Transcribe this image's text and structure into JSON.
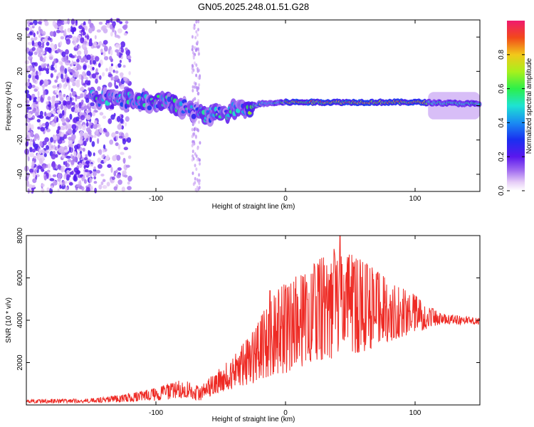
{
  "title": "GN05.2025.248.01.51.G28",
  "chart_data": [
    {
      "type": "heatmap",
      "name": "spectrogram",
      "xlabel": "Height of straight line (km)",
      "ylabel": "Frequency (Hz)",
      "xlim": [
        -200,
        150
      ],
      "ylim": [
        -50,
        50
      ],
      "xticks": [
        -100,
        0,
        100
      ],
      "yticks": [
        -40,
        -20,
        0,
        20,
        40
      ],
      "colorbar": {
        "label": "Normalized spectral amplitude",
        "range": [
          0,
          1
        ],
        "ticks": [
          "0.0",
          "0.2",
          "0.4",
          "0.6",
          "0.8"
        ]
      },
      "ridge": [
        {
          "x": -150,
          "y": 5
        },
        {
          "x": -130,
          "y": 4
        },
        {
          "x": -110,
          "y": 3
        },
        {
          "x": -90,
          "y": 1
        },
        {
          "x": -75,
          "y": -2
        },
        {
          "x": -60,
          "y": -6
        },
        {
          "x": -50,
          "y": -4
        },
        {
          "x": -40,
          "y": -3
        },
        {
          "x": -30,
          "y": -1
        },
        {
          "x": -20,
          "y": 1
        },
        {
          "x": 0,
          "y": 2
        },
        {
          "x": 50,
          "y": 2
        },
        {
          "x": 100,
          "y": 2
        },
        {
          "x": 150,
          "y": 1
        }
      ]
    },
    {
      "type": "line",
      "name": "snr",
      "xlabel": "Height of straight line (km)",
      "ylabel": "SNR (10 * v/v)",
      "xlim": [
        -200,
        150
      ],
      "ylim": [
        0,
        8000
      ],
      "xticks": [
        -100,
        0,
        100
      ],
      "yticks": [
        2000,
        4000,
        6000,
        8000
      ],
      "envelope": [
        {
          "x": -200,
          "min": 80,
          "max": 250
        },
        {
          "x": -150,
          "min": 100,
          "max": 300
        },
        {
          "x": -120,
          "min": 150,
          "max": 550
        },
        {
          "x": -100,
          "min": 200,
          "max": 800
        },
        {
          "x": -80,
          "min": 300,
          "max": 1200
        },
        {
          "x": -65,
          "min": 200,
          "max": 900
        },
        {
          "x": -55,
          "min": 500,
          "max": 1500
        },
        {
          "x": -40,
          "min": 800,
          "max": 2300
        },
        {
          "x": -25,
          "min": 1000,
          "max": 3500
        },
        {
          "x": -10,
          "min": 1400,
          "max": 5200
        },
        {
          "x": 0,
          "min": 1500,
          "max": 5800
        },
        {
          "x": 20,
          "min": 2000,
          "max": 6600
        },
        {
          "x": 40,
          "min": 2200,
          "max": 7500
        },
        {
          "x": 60,
          "min": 2500,
          "max": 6800
        },
        {
          "x": 80,
          "min": 3000,
          "max": 5900
        },
        {
          "x": 100,
          "min": 3400,
          "max": 5200
        },
        {
          "x": 120,
          "min": 3800,
          "max": 4300
        },
        {
          "x": 150,
          "min": 3800,
          "max": 4100
        }
      ],
      "peaks": [
        {
          "x": 42,
          "y": 8000
        },
        {
          "x": -12,
          "y": 5400
        },
        {
          "x": 63,
          "y": 6600
        }
      ]
    }
  ]
}
